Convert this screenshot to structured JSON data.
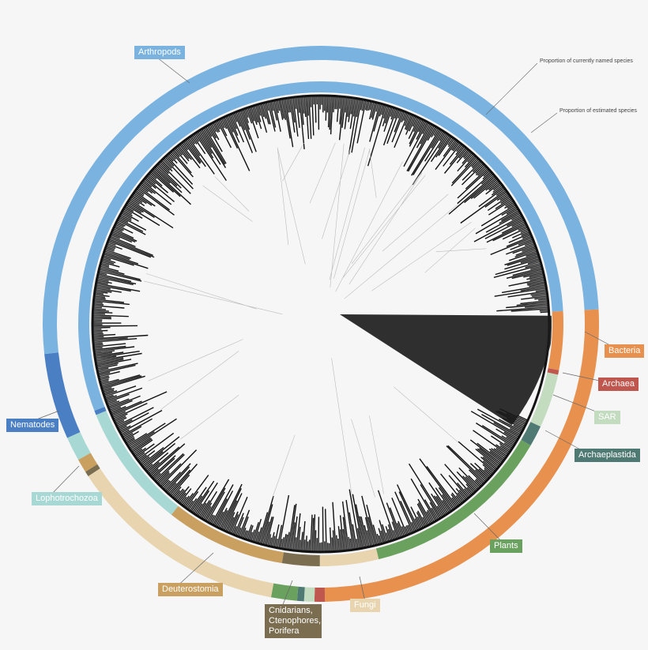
{
  "annotations": {
    "named": "Proportion of currently named species",
    "estimated": "Proportion of estimated species"
  },
  "groups": [
    {
      "label": "Bacteria",
      "color": "#e8914f",
      "named": 3.9,
      "estimated": 25.6
    },
    {
      "label": "Archaea",
      "color": "#c0574f",
      "named": 0.3,
      "estimated": 0.6
    },
    {
      "label": "SAR",
      "color": "#c3dcc0",
      "named": 3.6,
      "estimated": 0.6
    },
    {
      "label": "Archaeplastida",
      "color": "#4f7a74",
      "named": 1.4,
      "estimated": 0.4
    },
    {
      "label": "Plants",
      "color": "#6aa15e",
      "named": 12.8,
      "estimated": 1.5
    },
    {
      "label": "Fungi",
      "color": "#e8d5b0",
      "named": 3.9,
      "estimated": 12.9
    },
    {
      "label": "Cnidarians, Ctenophores, Porifera",
      "color": "#7b6e50",
      "named": 2.5,
      "estimated": 0.3
    },
    {
      "label": "Deuterostomia",
      "color": "#c9a060",
      "named": 8.0,
      "estimated": 0.8
    },
    {
      "label": "Lophotrochozoa",
      "color": "#a7d8d4",
      "named": 8.3,
      "estimated": 1.4
    },
    {
      "label": "Nematodes",
      "color": "#4a7fc4",
      "named": 0.3,
      "estimated": 5.0
    },
    {
      "label": "Arthropods",
      "color": "#7ab3e0",
      "named": 55.0,
      "estimated": 50.9
    }
  ]
}
